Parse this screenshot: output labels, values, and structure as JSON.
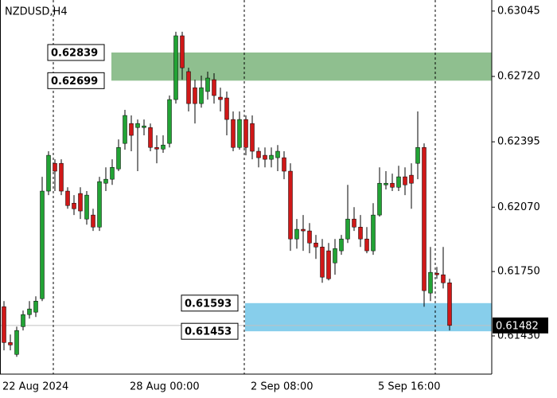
{
  "chart_data": {
    "type": "candlestick",
    "title": "NZDUSD,H4",
    "categories": [
      "22 Aug 2024",
      null,
      null,
      null,
      null,
      null,
      null,
      null,
      null,
      null,
      null,
      null,
      null,
      null,
      null,
      null,
      null,
      null,
      null,
      null,
      "28 Aug 00:00",
      null,
      null,
      null,
      null,
      null,
      null,
      null,
      null,
      null,
      null,
      null,
      null,
      null,
      null,
      null,
      null,
      null,
      null,
      "2 Sep 08:00",
      null,
      null,
      null,
      null,
      null,
      null,
      null,
      null,
      null,
      null,
      null,
      null,
      null,
      null,
      null,
      null,
      null,
      null,
      null,
      "5 Sep 16:00",
      null,
      null,
      null,
      null,
      null,
      null,
      null,
      null,
      null,
      null,
      null
    ],
    "open": [
      0.61575,
      0.61397,
      0.61338,
      0.61476,
      0.61536,
      0.61548,
      0.61615,
      0.6215,
      0.62288,
      0.62288,
      0.6215,
      0.6209,
      0.62138,
      0.62011,
      0.62031,
      0.61971,
      0.62189,
      0.62209,
      0.6226,
      0.62387,
      0.62486,
      0.62466,
      0.62466,
      0.62466,
      0.62367,
      0.62359,
      0.62387,
      0.62605,
      0.62922,
      0.62744,
      0.62664,
      0.62585,
      0.62645,
      0.62704,
      0.62617,
      0.62613,
      0.62506,
      0.62367,
      0.62506,
      0.62486,
      0.62348,
      0.62328,
      0.62308,
      0.62316,
      0.62316,
      0.62249,
      0.61912,
      0.6196,
      0.61952,
      0.61892,
      0.61872,
      0.61853,
      0.61793,
      0.61853,
      0.61912,
      0.62011,
      0.61971,
      0.61912,
      0.61853,
      0.62031,
      0.62181,
      0.62189,
      0.62169,
      0.62221,
      0.62229,
      0.62288,
      0.62367,
      0.61643,
      0.61742,
      0.61734,
      0.61694
    ],
    "high": [
      0.61603,
      0.61437,
      0.61476,
      0.61556,
      0.61603,
      0.61627,
      0.62221,
      0.62348,
      0.62308,
      0.62308,
      0.62169,
      0.6213,
      0.62169,
      0.6215,
      0.62062,
      0.62221,
      0.62268,
      0.62308,
      0.62407,
      0.62554,
      0.62526,
      0.62506,
      0.62506,
      0.62486,
      0.62427,
      0.62427,
      0.62625,
      0.62942,
      0.62942,
      0.62763,
      0.62704,
      0.62724,
      0.62744,
      0.62736,
      0.62664,
      0.62645,
      0.62546,
      0.62546,
      0.62526,
      0.62526,
      0.62367,
      0.62367,
      0.62367,
      0.62379,
      0.62348,
      0.62288,
      0.62011,
      0.62031,
      0.61991,
      0.61932,
      0.61912,
      0.61892,
      0.61912,
      0.61932,
      0.62181,
      0.6207,
      0.62031,
      0.61971,
      0.6209,
      0.62268,
      0.62249,
      0.62237,
      0.62276,
      0.62268,
      0.62288,
      0.62546,
      0.62387,
      0.61872,
      0.61773,
      0.61872,
      0.61714
    ],
    "low": [
      0.61358,
      0.61358,
      0.61326,
      0.61457,
      0.61516,
      0.61524,
      0.61603,
      0.6213,
      0.6215,
      0.6213,
      0.62062,
      0.62031,
      0.62011,
      0.61983,
      0.61952,
      0.61952,
      0.6215,
      0.62181,
      0.62249,
      0.62356,
      0.62348,
      0.62249,
      0.62427,
      0.62348,
      0.62288,
      0.6234,
      0.62367,
      0.62585,
      0.62704,
      0.62546,
      0.62486,
      0.62565,
      0.62605,
      0.62585,
      0.62546,
      0.62427,
      0.62348,
      0.62356,
      0.62328,
      0.62308,
      0.62268,
      0.62268,
      0.62268,
      0.62249,
      0.62209,
      0.61853,
      0.61864,
      0.61853,
      0.61841,
      0.61813,
      0.61694,
      0.61706,
      0.61734,
      0.61833,
      0.61892,
      0.61952,
      0.61872,
      0.61841,
      0.61833,
      0.62023,
      0.62158,
      0.6215,
      0.6215,
      0.6213,
      0.62062,
      0.62209,
      0.61575,
      0.61603,
      0.61714,
      0.61666,
      0.61457
    ],
    "close": [
      0.61397,
      0.61385,
      0.61457,
      0.61536,
      0.61564,
      0.61603,
      0.6215,
      0.62328,
      0.62249,
      0.6215,
      0.62078,
      0.62062,
      0.62051,
      0.6213,
      0.61971,
      0.62197,
      0.62209,
      0.62268,
      0.62367,
      0.62526,
      0.62427,
      0.62486,
      0.62474,
      0.62367,
      0.62359,
      0.62379,
      0.62605,
      0.62922,
      0.62763,
      0.62585,
      0.62585,
      0.62664,
      0.62712,
      0.62625,
      0.62605,
      0.62506,
      0.62367,
      0.62506,
      0.62367,
      0.62348,
      0.62316,
      0.62308,
      0.62328,
      0.62348,
      0.62249,
      0.61912,
      0.6196,
      0.61952,
      0.61892,
      0.61872,
      0.61722,
      0.61714,
      0.61864,
      0.61912,
      0.62011,
      0.61971,
      0.61912,
      0.61853,
      0.62031,
      0.62189,
      0.62189,
      0.62169,
      0.62221,
      0.62181,
      0.62189,
      0.62367,
      0.61655,
      0.61746,
      0.61734,
      0.61694,
      0.61482
    ],
    "up_color": "#22a335",
    "down_color": "#d01818",
    "ylim": [
      0.6124,
      0.631
    ],
    "yticks": [
      0.63045,
      {
        "value": 0.6272,
        "label": "0.62720"
      },
      0.62395,
      {
        "value": 0.6207,
        "label": "0.62070"
      },
      {
        "value": 0.6175,
        "label": "0.61750"
      },
      {
        "value": 0.6143,
        "label": "0.61430"
      }
    ],
    "zones": [
      {
        "top": 0.62839,
        "bottom": 0.62699,
        "color": "#8fbf8f"
      },
      {
        "top": 0.61593,
        "bottom": 0.61453,
        "color": "#87ceeb"
      }
    ],
    "current_price": 0.61482
  }
}
